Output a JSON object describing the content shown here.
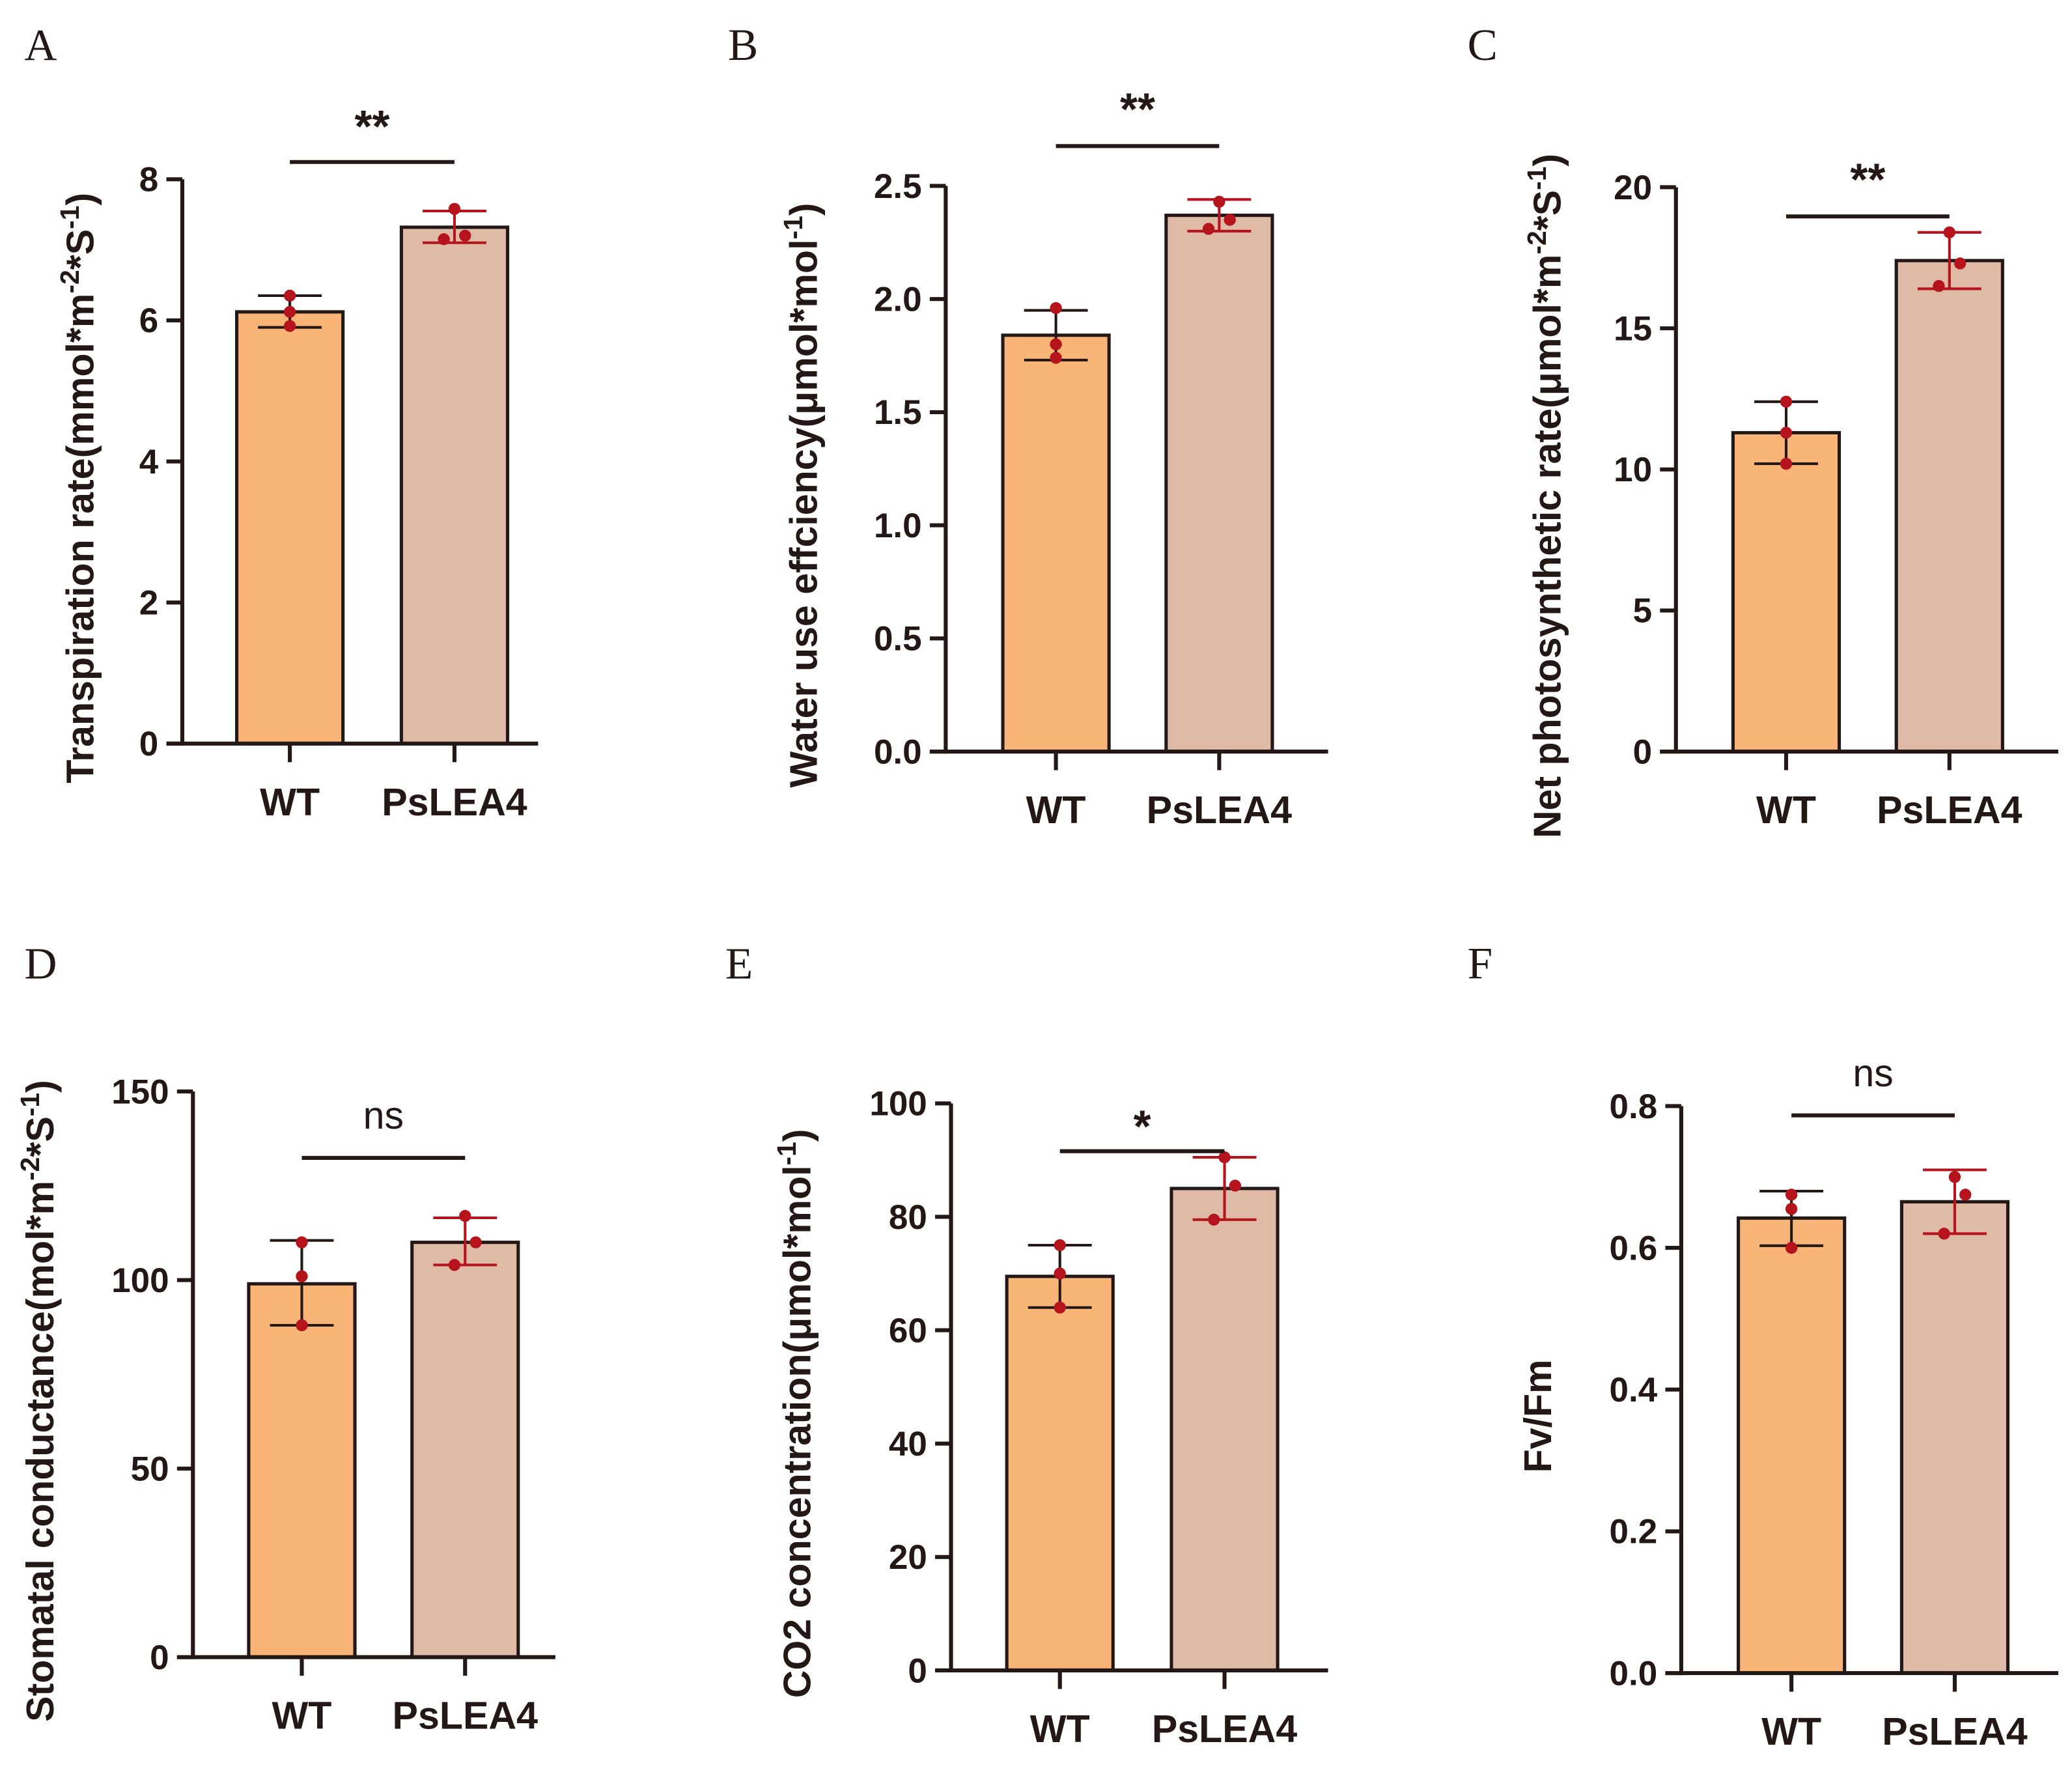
{
  "colors": {
    "wt": "#F9B578",
    "pslea4": "#DFBBA7",
    "axis": "#231815",
    "points": "#B5141C"
  },
  "chart_data": [
    {
      "panel": "A",
      "type": "bar",
      "ylabel": "Transpiration rate(mmol*m-2*S-1)",
      "ylabel_main": "Transpiration rate(mmol*m",
      "ylabel_sup1": "-2",
      "ylabel_mid": "*S",
      "ylabel_sup2": "-1",
      "ylabel_end": ")",
      "categories": [
        "WT",
        "PsLEA4"
      ],
      "ylim": [
        0,
        8
      ],
      "yticks": [
        0,
        2,
        4,
        6,
        8
      ],
      "ytick_labels": [
        "0",
        "2",
        "4",
        "6",
        "8"
      ],
      "series": [
        {
          "name": "mean",
          "values": [
            6.12,
            7.32
          ]
        }
      ],
      "error": [
        [
          5.9,
          6.35
        ],
        [
          7.1,
          7.55
        ]
      ],
      "points": [
        [
          6.35,
          6.12,
          5.92
        ],
        [
          7.58,
          7.2,
          7.15
        ]
      ],
      "significance": "**"
    },
    {
      "panel": "B",
      "type": "bar",
      "ylabel": "Water use effciency(μmol*mol-1)",
      "ylabel_main": "Water use effciency(μmol*mol",
      "ylabel_sup1": "-1",
      "ylabel_mid": "",
      "ylabel_sup2": "",
      "ylabel_end": ")",
      "categories": [
        "WT",
        "PsLEA4"
      ],
      "ylim": [
        0,
        2.5
      ],
      "yticks": [
        0,
        0.5,
        1.0,
        1.5,
        2.0,
        2.5
      ],
      "ytick_labels": [
        "0.0",
        "0.5",
        "1.0",
        "1.5",
        "2.0",
        "2.5"
      ],
      "series": [
        {
          "name": "mean",
          "values": [
            1.84,
            2.37
          ]
        }
      ],
      "error": [
        [
          1.73,
          1.95
        ],
        [
          2.3,
          2.44
        ]
      ],
      "points": [
        [
          1.96,
          1.8,
          1.74
        ],
        [
          2.43,
          2.35,
          2.31
        ]
      ],
      "significance": "**"
    },
    {
      "panel": "C",
      "type": "bar",
      "ylabel": "Net photosynthetic rate(μmol*m-2*S-1)",
      "ylabel_main": "Net photosynthetic rate(μmol*m",
      "ylabel_sup1": "-2",
      "ylabel_mid": "*S",
      "ylabel_sup2": "-1",
      "ylabel_end": ")",
      "categories": [
        "WT",
        "PsLEA4"
      ],
      "ylim": [
        0,
        20
      ],
      "yticks": [
        0,
        5,
        10,
        15,
        20
      ],
      "ytick_labels": [
        "0",
        "5",
        "10",
        "15",
        "20"
      ],
      "series": [
        {
          "name": "mean",
          "values": [
            11.3,
            17.4
          ]
        }
      ],
      "error": [
        [
          10.2,
          12.4
        ],
        [
          16.4,
          18.4
        ]
      ],
      "points": [
        [
          12.4,
          11.3,
          10.2
        ],
        [
          18.4,
          17.3,
          16.5
        ]
      ],
      "significance": "**"
    },
    {
      "panel": "D",
      "type": "bar",
      "ylabel": "Stomatal conductance(mol*m-2*S-1)",
      "ylabel_main": "Stomatal conductance(mol*m",
      "ylabel_sup1": "-2",
      "ylabel_mid": "*S",
      "ylabel_sup2": "-1",
      "ylabel_end": ")",
      "categories": [
        "WT",
        "PsLEA4"
      ],
      "ylim": [
        0,
        150
      ],
      "yticks": [
        0,
        50,
        100,
        150
      ],
      "ytick_labels": [
        "0",
        "50",
        "100",
        "150"
      ],
      "series": [
        {
          "name": "mean",
          "values": [
            99,
            110
          ]
        }
      ],
      "error": [
        [
          88,
          110.5
        ],
        [
          104,
          116.5
        ]
      ],
      "points": [
        [
          110,
          101,
          88
        ],
        [
          117,
          110,
          104
        ]
      ],
      "significance": "ns"
    },
    {
      "panel": "E",
      "type": "bar",
      "ylabel": "CO2 concentration(μmol*mol-1)",
      "ylabel_main": "CO2 concentration(μmol*mol",
      "ylabel_sup1": "-1",
      "ylabel_mid": "",
      "ylabel_sup2": "",
      "ylabel_end": ")",
      "categories": [
        "WT",
        "PsLEA4"
      ],
      "ylim": [
        0,
        100
      ],
      "yticks": [
        0,
        20,
        40,
        60,
        80,
        100
      ],
      "ytick_labels": [
        "0",
        "20",
        "40",
        "60",
        "80",
        "100"
      ],
      "series": [
        {
          "name": "mean",
          "values": [
            69.5,
            85
          ]
        }
      ],
      "error": [
        [
          64,
          75
        ],
        [
          79.5,
          90.5
        ]
      ],
      "points": [
        [
          75,
          70,
          64
        ],
        [
          90.5,
          85.5,
          79.5
        ]
      ],
      "significance": "*"
    },
    {
      "panel": "F",
      "type": "bar",
      "ylabel": "Fv/Fm",
      "ylabel_main": "Fv/Fm",
      "ylabel_sup1": "",
      "ylabel_mid": "",
      "ylabel_sup2": "",
      "ylabel_end": "",
      "categories": [
        "WT",
        "PsLEA4"
      ],
      "ylim": [
        0,
        0.8
      ],
      "yticks": [
        0,
        0.2,
        0.4,
        0.6,
        0.8
      ],
      "ytick_labels": [
        "0.0",
        "0.2",
        "0.4",
        "0.6",
        "0.8"
      ],
      "series": [
        {
          "name": "mean",
          "values": [
            0.642,
            0.665
          ]
        }
      ],
      "error": [
        [
          0.603,
          0.68
        ],
        [
          0.62,
          0.71
        ]
      ],
      "points": [
        [
          0.675,
          0.655,
          0.6
        ],
        [
          0.7,
          0.675,
          0.62
        ]
      ],
      "significance": "ns"
    }
  ]
}
